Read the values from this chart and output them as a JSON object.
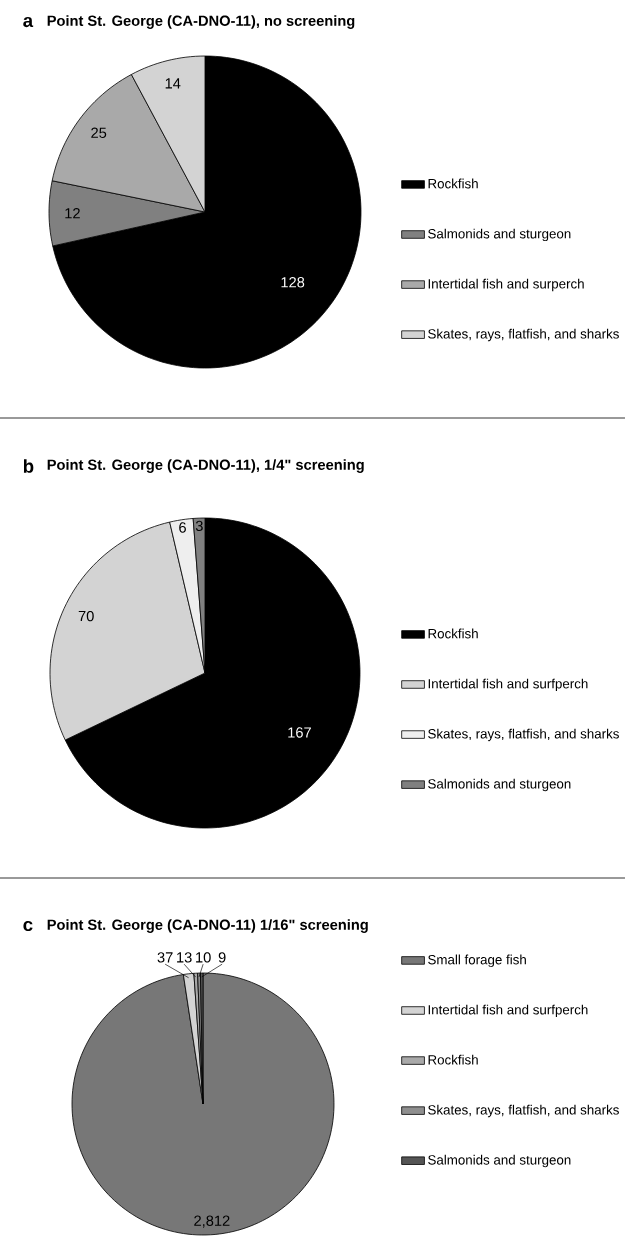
{
  "chart_data": [
    {
      "type": "pie",
      "title": "Point St. George (CA-DNO-11), no screening",
      "annotations": [
        "a"
      ],
      "categories": [
        "Rockfish",
        "Salmonids and sturgeon",
        "Intertidal fish and surperch",
        "Skates, rays, flatfish, and sharks"
      ],
      "values": [
        128,
        12,
        25,
        14
      ],
      "colors": [
        "#000000",
        "#808080",
        "#a9a9a9",
        "#d3d3d3"
      ],
      "data_labels": true,
      "legend": "right"
    },
    {
      "type": "pie",
      "title": "Point St. George (CA-DNO-11), 1/4\" screening",
      "annotations": [
        "b"
      ],
      "categories": [
        "Rockfish",
        "Intertidal fish and surfperch",
        "Skates, rays, flatfish, and sharks",
        "Salmonids and sturgeon"
      ],
      "values": [
        167,
        70,
        6,
        3
      ],
      "colors": [
        "#000000",
        "#d3d3d3",
        "#eeeeee",
        "#808080"
      ],
      "data_labels": true,
      "legend": "right"
    },
    {
      "type": "pie",
      "title": "Point St. George (CA-DNO-11) 1/16\" screening",
      "annotations": [
        "c"
      ],
      "categories": [
        "Small forage fish",
        "Intertidal fish and surfperch",
        "Rockfish",
        "Skates, rays, flatfish, and sharks",
        "Salmonids and sturgeon"
      ],
      "values": [
        2812,
        37,
        13,
        10,
        9
      ],
      "value_labels": [
        "2,812",
        "37",
        "13",
        "10",
        "9"
      ],
      "colors": [
        "#777777",
        "#d3d3d3",
        "#a9a9a9",
        "#8f8f8f",
        "#555555"
      ],
      "legend": "right"
    }
  ]
}
